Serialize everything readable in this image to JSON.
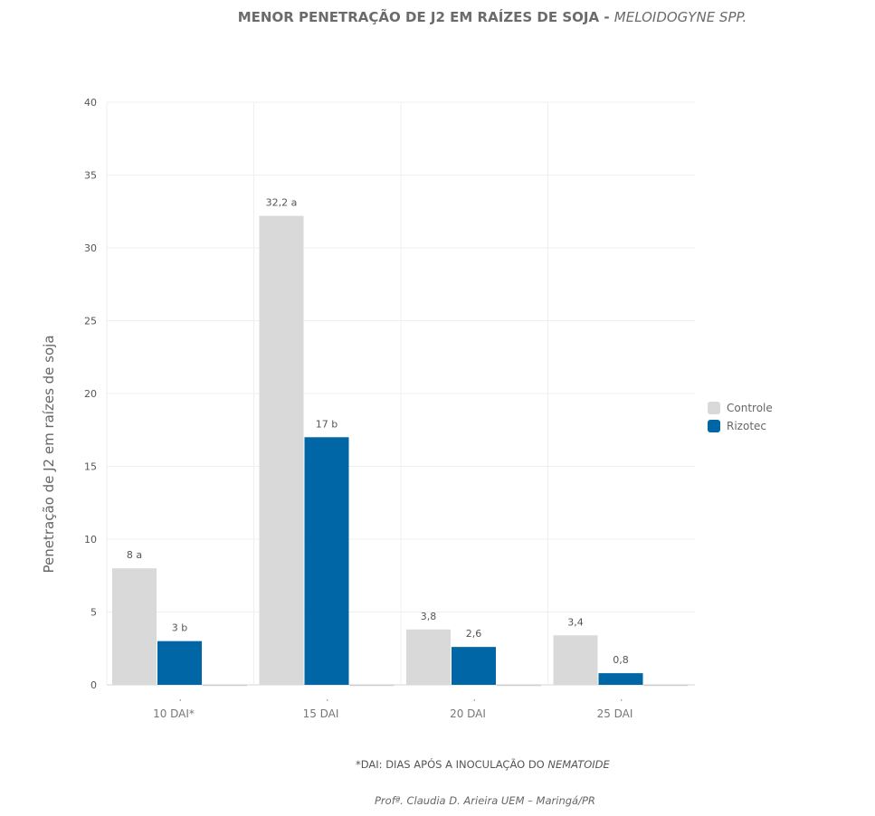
{
  "title": {
    "main": "MENOR PENETRAÇÃO DE J2 EM RAÍZES DE SOJA - ",
    "italic": "MELOIDOGYNE SPP."
  },
  "footnote": {
    "text": "*DAI: DIAS APÓS A INOCULAÇÃO DO ",
    "italic": "NEMATOIDE"
  },
  "credit": "Profª. Claudia D. Arieira UEM – Maringá/PR",
  "chart_data": {
    "type": "bar",
    "title": "MENOR PENETRAÇÃO DE J2 EM RAÍZES DE SOJA - MELOIDOGYNE SPP.",
    "xlabel": "",
    "ylabel": "Penetração de J2 em raízes de soja",
    "ylim": [
      0,
      40
    ],
    "yticks": [
      "0",
      "5",
      "10",
      "15",
      "20",
      "25",
      "30",
      "35",
      "40"
    ],
    "categories": [
      "10 DAI*",
      "15 DAI",
      "20 DAI",
      "25 DAI"
    ],
    "series": [
      {
        "name": "Controle",
        "color": "#d9d9d9",
        "values": [
          8,
          32.2,
          3.8,
          3.4
        ],
        "labels": [
          "8 a",
          "32,2 a",
          "3,8",
          "3,4"
        ]
      },
      {
        "name": "Rizotec",
        "color": "#0066a6",
        "values": [
          3,
          17,
          2.6,
          0.8
        ],
        "labels": [
          "3 b",
          "17 b",
          "2,6",
          "0,8"
        ]
      }
    ],
    "legend_position": "right",
    "grid": true
  }
}
